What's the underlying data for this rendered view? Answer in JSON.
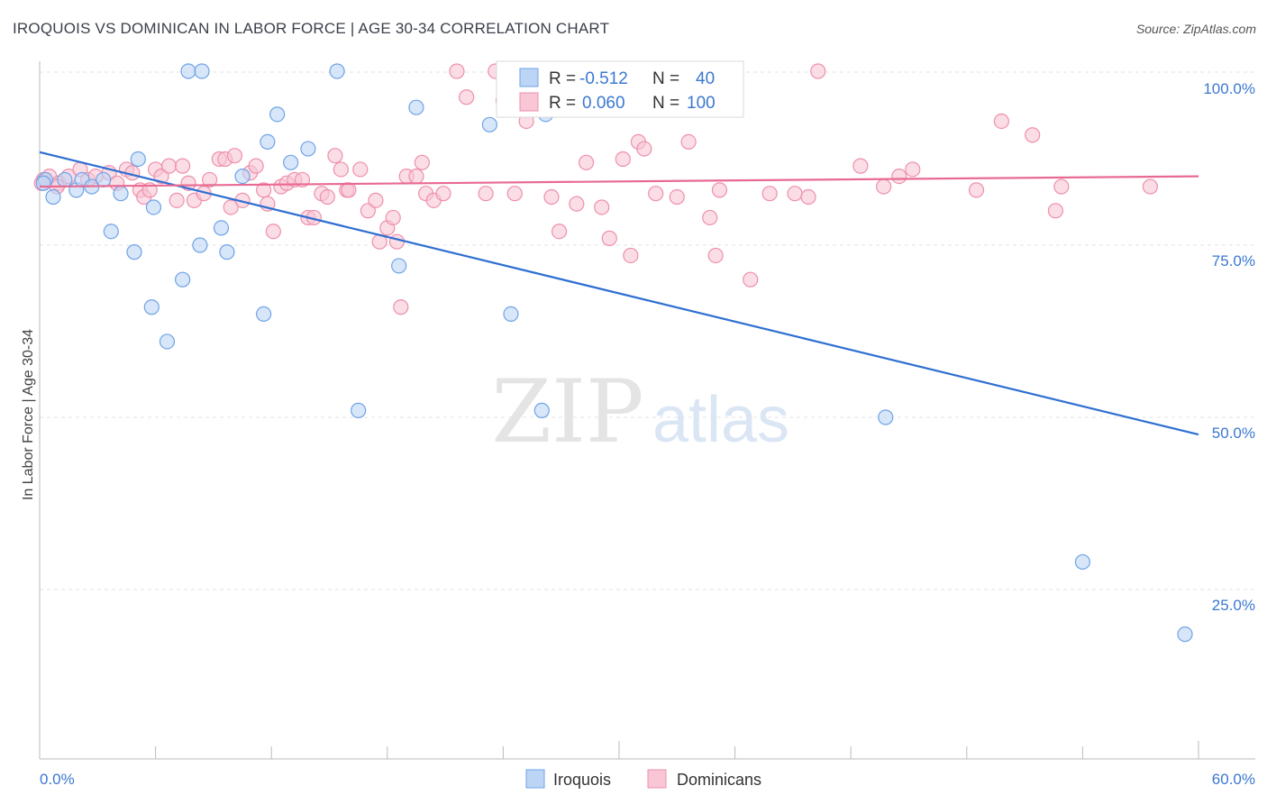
{
  "title": "IROQUOIS VS DOMINICAN IN LABOR FORCE | AGE 30-34 CORRELATION CHART",
  "source": "Source: ZipAtlas.com",
  "colors": {
    "iroquois": "#6fa3e6",
    "iroquois_fill": "#bcd5f5",
    "iroquois_line": "#2e6fd1",
    "dominican": "#ee8fab",
    "dominican_fill": "#f8c6d5",
    "dominican_line": "#e86a92",
    "axis_value_text": "#3b78d0",
    "grid": "#e3e3e3"
  },
  "legend_box": {
    "rows": [
      {
        "series": "Iroquois",
        "r_label": "R = ",
        "r_value": "-0.512",
        "n_label": "N = ",
        "n_value": "40"
      },
      {
        "series": "Dominicans",
        "r_label": "R = ",
        "r_value": "0.060",
        "n_label": "N = ",
        "n_value": "100"
      }
    ]
  },
  "watermark": {
    "part1": "ZIP",
    "part2": "atlas"
  },
  "chart_data": {
    "type": "scatter",
    "title": "IROQUOIS VS DOMINICAN IN LABOR FORCE | AGE 30-34 CORRELATION CHART",
    "xlabel": "",
    "ylabel": "In Labor Force | Age 30-34",
    "xlim": [
      0,
      60
    ],
    "ylim": [
      0,
      105
    ],
    "x_tick_labels": [
      "0.0%",
      "60.0%"
    ],
    "y_tick_labels": [
      "100.0%",
      "75.0%",
      "50.0%",
      "25.0%"
    ],
    "y_ticks": [
      100,
      75,
      50,
      25
    ],
    "grid": true,
    "legend": [
      "Iroquois",
      "Dominicans"
    ],
    "series": [
      {
        "name": "Iroquois",
        "r": -0.512,
        "n": 40,
        "trend": [
          [
            0,
            88.5
          ],
          [
            60,
            47.5
          ]
        ],
        "points": [
          [
            0.3,
            84.5
          ],
          [
            0.7,
            82
          ],
          [
            1.3,
            84.5
          ],
          [
            1.9,
            83
          ],
          [
            2.2,
            84.5
          ],
          [
            2.7,
            83.5
          ],
          [
            3.3,
            84.5
          ],
          [
            4.2,
            82.5
          ],
          [
            3.7,
            77
          ],
          [
            4.9,
            74
          ],
          [
            5.1,
            87.5
          ],
          [
            5.9,
            80.5
          ],
          [
            5.8,
            66
          ],
          [
            6.6,
            61
          ],
          [
            7.4,
            70
          ],
          [
            7.7,
            100
          ],
          [
            8.4,
            100
          ],
          [
            8.3,
            75
          ],
          [
            9.4,
            77.5
          ],
          [
            9.7,
            74
          ],
          [
            10.5,
            85
          ],
          [
            11.6,
            65
          ],
          [
            12.3,
            94
          ],
          [
            11.8,
            90
          ],
          [
            13.0,
            87
          ],
          [
            13.9,
            89
          ],
          [
            15.4,
            100
          ],
          [
            16.5,
            51
          ],
          [
            18.6,
            72
          ],
          [
            19.5,
            95
          ],
          [
            23.3,
            92.5
          ],
          [
            24.4,
            65
          ],
          [
            26.0,
            51
          ],
          [
            26.2,
            94
          ],
          [
            28.5,
            100
          ],
          [
            29.3,
            100
          ],
          [
            43.8,
            50
          ],
          [
            54.0,
            29
          ],
          [
            59.3,
            18.5
          ],
          [
            0.2,
            84
          ]
        ]
      },
      {
        "name": "Dominicans",
        "r": 0.06,
        "n": 100,
        "trend": [
          [
            0,
            83.5
          ],
          [
            60,
            85
          ]
        ],
        "points": [
          [
            0.2,
            84.5
          ],
          [
            0.5,
            85
          ],
          [
            1.0,
            84
          ],
          [
            1.5,
            85
          ],
          [
            2.1,
            86
          ],
          [
            2.5,
            84.5
          ],
          [
            2.9,
            85
          ],
          [
            3.6,
            85.5
          ],
          [
            4.0,
            84
          ],
          [
            4.5,
            86
          ],
          [
            4.8,
            85.5
          ],
          [
            5.2,
            83
          ],
          [
            5.4,
            82
          ],
          [
            5.7,
            83
          ],
          [
            6.0,
            86
          ],
          [
            6.3,
            85
          ],
          [
            6.7,
            86.5
          ],
          [
            7.1,
            81.5
          ],
          [
            7.4,
            86.5
          ],
          [
            7.7,
            84
          ],
          [
            8.0,
            81.5
          ],
          [
            8.5,
            82.5
          ],
          [
            8.8,
            84.5
          ],
          [
            9.3,
            87.5
          ],
          [
            9.6,
            87.5
          ],
          [
            9.9,
            80.5
          ],
          [
            10.1,
            88
          ],
          [
            10.5,
            81.5
          ],
          [
            10.9,
            85.5
          ],
          [
            11.2,
            86.5
          ],
          [
            11.6,
            83
          ],
          [
            11.8,
            81
          ],
          [
            12.1,
            77
          ],
          [
            12.5,
            83.5
          ],
          [
            12.8,
            84
          ],
          [
            13.2,
            84.5
          ],
          [
            13.6,
            84.5
          ],
          [
            13.9,
            79
          ],
          [
            14.2,
            79
          ],
          [
            14.6,
            82.5
          ],
          [
            14.9,
            82
          ],
          [
            15.3,
            88
          ],
          [
            15.6,
            86
          ],
          [
            15.9,
            83
          ],
          [
            16.6,
            86
          ],
          [
            17.0,
            80
          ],
          [
            17.4,
            81.5
          ],
          [
            17.6,
            75.5
          ],
          [
            18.0,
            77.5
          ],
          [
            18.3,
            79
          ],
          [
            18.5,
            75.5
          ],
          [
            18.7,
            66
          ],
          [
            19.0,
            85
          ],
          [
            19.5,
            85
          ],
          [
            19.8,
            87
          ],
          [
            20.0,
            82.5
          ],
          [
            20.4,
            81.5
          ],
          [
            20.9,
            82.5
          ],
          [
            21.6,
            100
          ],
          [
            22.1,
            96.5
          ],
          [
            23.1,
            82.5
          ],
          [
            23.6,
            100
          ],
          [
            24.6,
            82.5
          ],
          [
            25.2,
            93
          ],
          [
            26.5,
            82
          ],
          [
            26.9,
            77
          ],
          [
            27.8,
            81
          ],
          [
            28.3,
            87
          ],
          [
            29.1,
            80.5
          ],
          [
            29.5,
            76
          ],
          [
            30.2,
            87.5
          ],
          [
            30.6,
            73.5
          ],
          [
            31.0,
            90
          ],
          [
            31.3,
            89
          ],
          [
            31.9,
            82.5
          ],
          [
            32.4,
            100
          ],
          [
            33.6,
            90
          ],
          [
            34.7,
            79
          ],
          [
            35.0,
            73.5
          ],
          [
            35.2,
            83
          ],
          [
            36.8,
            70
          ],
          [
            37.8,
            82.5
          ],
          [
            39.1,
            82.5
          ],
          [
            39.8,
            82
          ],
          [
            40.3,
            100
          ],
          [
            42.5,
            86.5
          ],
          [
            43.7,
            83.5
          ],
          [
            44.5,
            85
          ],
          [
            45.2,
            86
          ],
          [
            48.5,
            83
          ],
          [
            49.8,
            93
          ],
          [
            51.4,
            91
          ],
          [
            52.6,
            80
          ],
          [
            52.9,
            83.5
          ],
          [
            57.5,
            83.5
          ],
          [
            33.0,
            82
          ],
          [
            0.1,
            84
          ],
          [
            0.9,
            83.5
          ],
          [
            24.0,
            96
          ],
          [
            16.0,
            83
          ]
        ]
      }
    ]
  }
}
